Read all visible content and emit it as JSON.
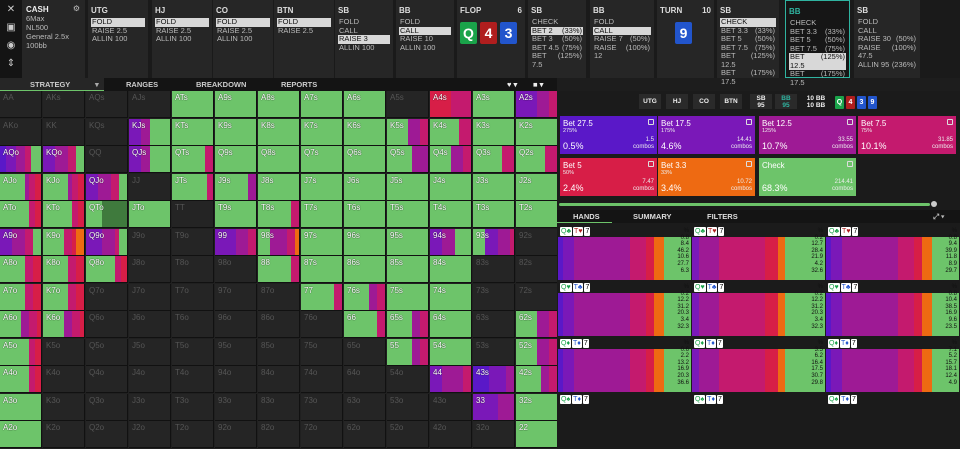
{
  "toolbar": {
    "icons": [
      "close-icon",
      "save-icon",
      "gamepad-icon",
      "split-icon"
    ]
  },
  "game": {
    "title": "CASH",
    "lines": [
      "6Max",
      "NL500",
      "General 2.5x",
      "100bb"
    ]
  },
  "positions": [
    {
      "key": "utg",
      "name": "UTG",
      "actions": [
        "FOLD",
        "RAISE 2.5",
        "ALLIN 100"
      ],
      "sel": 0,
      "x": 88,
      "w": 60
    },
    {
      "key": "hj",
      "name": "HJ",
      "actions": [
        "FOLD",
        "RAISE 2.5",
        "ALLIN 100"
      ],
      "sel": 0,
      "x": 152,
      "w": 60
    },
    {
      "key": "co",
      "name": "CO",
      "actions": [
        "FOLD",
        "RAISE 2.5",
        "ALLIN 100"
      ],
      "sel": 0,
      "x": 213,
      "w": 60
    },
    {
      "key": "btn",
      "name": "BTN",
      "actions": [
        "FOLD",
        "RAISE 2.5"
      ],
      "sel": 0,
      "x": 274,
      "w": 60
    },
    {
      "key": "sb",
      "name": "SB",
      "actions": [
        "FOLD",
        "CALL",
        "RAISE 3",
        "ALLIN 100"
      ],
      "sel": 2,
      "x": 335,
      "w": 58
    },
    {
      "key": "bb",
      "name": "BB",
      "actions": [
        "FOLD",
        "CALL",
        "RAISE 10",
        "ALLIN 100"
      ],
      "sel": 1,
      "x": 396,
      "w": 58
    }
  ],
  "flop": {
    "label": "FLOP",
    "pot": "6",
    "cards": [
      {
        "r": "Q",
        "c": "#1aa34a"
      },
      {
        "r": "4",
        "c": "#b01e1e"
      },
      {
        "r": "3",
        "c": "#2255cc"
      }
    ]
  },
  "flop_actions": [
    {
      "key": "sb",
      "name": "SB",
      "actions": [
        [
          "CHECK",
          ""
        ],
        [
          "BET 2",
          "(33%)"
        ],
        [
          "BET 3",
          "(50%)"
        ],
        [
          "BET 4.5",
          "(75%)"
        ],
        [
          "BET 7.5",
          "(125%)"
        ]
      ],
      "sel": 1,
      "x": 528,
      "w": 58
    },
    {
      "key": "bb",
      "name": "BB",
      "actions": [
        [
          "FOLD",
          ""
        ],
        [
          "CALL",
          ""
        ],
        [
          "RAISE 7",
          "(50%)"
        ],
        [
          "RAISE 12",
          "(100%)"
        ]
      ],
      "sel": 1,
      "x": 590,
      "w": 64
    }
  ],
  "turn": {
    "label": "TURN",
    "pot": "10",
    "cards": [
      {
        "r": "9",
        "c": "#2255cc"
      }
    ]
  },
  "turn_actions": [
    {
      "key": "sb",
      "name": "SB",
      "actions": [
        [
          "CHECK",
          ""
        ],
        [
          "BET 3.3",
          "(33%)"
        ],
        [
          "BET 5",
          "(50%)"
        ],
        [
          "BET 7.5",
          "(75%)"
        ],
        [
          "BET 12.5",
          "(125%)"
        ],
        [
          "BET 17.5",
          "(175%)"
        ]
      ],
      "sel": 0,
      "x": 717,
      "w": 62
    },
    {
      "key": "bb",
      "name": "BB",
      "actions": [
        [
          "CHECK",
          ""
        ],
        [
          "BET 3.3",
          "(33%)"
        ],
        [
          "BET 5",
          "(50%)"
        ],
        [
          "BET 7.5",
          "(75%)"
        ],
        [
          "BET 12.5",
          "(125%)"
        ],
        [
          "BET 17.5",
          "(175%)"
        ]
      ],
      "sel": -1,
      "x": 785,
      "w": 65
    },
    {
      "key": "sb2",
      "name": "SB",
      "actions": [
        [
          "FOLD",
          ""
        ],
        [
          "CALL",
          ""
        ],
        [
          "RAISE 30",
          "(50%)"
        ],
        [
          "RAISE 47.5",
          "(100%)"
        ],
        [
          "ALLIN 95",
          "(236%)"
        ]
      ],
      "sel": -1,
      "x": 854,
      "w": 66
    }
  ],
  "tabs": [
    "STRATEGY",
    "RANGES",
    "BREAKDOWN",
    "REPORTS"
  ],
  "grid": [
    [
      "AA",
      "AKs",
      "AQs",
      "AJs",
      "ATs",
      "A9s",
      "A8s",
      "A7s",
      "A6s",
      "A5s",
      "A4s",
      "A3s",
      "A2s"
    ],
    [
      "AKo",
      "KK",
      "KQs",
      "KJs",
      "KTs",
      "K9s",
      "K8s",
      "K7s",
      "K6s",
      "K5s",
      "K4s",
      "K3s",
      "K2s"
    ],
    [
      "AQo",
      "KQo",
      "QQ",
      "QJs",
      "QTs",
      "Q9s",
      "Q8s",
      "Q7s",
      "Q6s",
      "Q5s",
      "Q4s",
      "Q3s",
      "Q2s"
    ],
    [
      "AJo",
      "KJo",
      "QJo",
      "JJ",
      "JTs",
      "J9s",
      "J8s",
      "J7s",
      "J6s",
      "J5s",
      "J4s",
      "J3s",
      "J2s"
    ],
    [
      "ATo",
      "KTo",
      "QTo",
      "JTo",
      "TT",
      "T9s",
      "T8s",
      "T7s",
      "T6s",
      "T5s",
      "T4s",
      "T3s",
      "T2s"
    ],
    [
      "A9o",
      "K9o",
      "Q9o",
      "J9o",
      "T9o",
      "99",
      "98s",
      "97s",
      "96s",
      "95s",
      "94s",
      "93s",
      "92s"
    ],
    [
      "A8o",
      "K8o",
      "Q8o",
      "J8o",
      "T8o",
      "98o",
      "88",
      "87s",
      "86s",
      "85s",
      "84s",
      "83s",
      "82s"
    ],
    [
      "A7o",
      "K7o",
      "Q7o",
      "J7o",
      "T7o",
      "97o",
      "87o",
      "77",
      "76s",
      "75s",
      "74s",
      "73s",
      "72s"
    ],
    [
      "A6o",
      "K6o",
      "Q6o",
      "J6o",
      "T6o",
      "96o",
      "86o",
      "76o",
      "66",
      "65s",
      "64s",
      "63s",
      "62s"
    ],
    [
      "A5o",
      "K5o",
      "Q5o",
      "J5o",
      "T5o",
      "95o",
      "85o",
      "75o",
      "65o",
      "55",
      "54s",
      "53s",
      "52s"
    ],
    [
      "A4o",
      "K4o",
      "Q4o",
      "J4o",
      "T4o",
      "94o",
      "84o",
      "74o",
      "64o",
      "54o",
      "44",
      "43s",
      "42s"
    ],
    [
      "A3o",
      "K3o",
      "Q3o",
      "J3o",
      "T3o",
      "93o",
      "83o",
      "73o",
      "63o",
      "53o",
      "43o",
      "33",
      "32s"
    ],
    [
      "A2o",
      "K2o",
      "Q2o",
      "J2o",
      "T2o",
      "92o",
      "82o",
      "72o",
      "62o",
      "52o",
      "42o",
      "32o",
      "22"
    ]
  ],
  "players": [
    "UTG",
    "HJ",
    "CO",
    "BTN"
  ],
  "sb_stack": {
    "name": "SB",
    "stack": "95"
  },
  "bb_stack": {
    "name": "BB",
    "stack": "95"
  },
  "pot_label": "10 BB",
  "pot_sub": "10 BB",
  "board": [
    {
      "r": "Q",
      "c": "#1aa34a"
    },
    {
      "r": "4",
      "c": "#b01e1e"
    },
    {
      "r": "3",
      "c": "#2255cc"
    },
    {
      "r": "9",
      "c": "#2255cc"
    }
  ],
  "strategy_boxes": [
    {
      "key": "bet-27-5",
      "label": "Bet 27.5",
      "size": "275%",
      "pct": "0.5%",
      "combos": "1.5",
      "unit": "combos",
      "color": "#5a18c8"
    },
    {
      "key": "bet-17-5",
      "label": "Bet 17.5",
      "size": "175%",
      "pct": "4.6%",
      "combos": "14.41",
      "unit": "combos",
      "color": "#7a18b8"
    },
    {
      "key": "bet-12-5",
      "label": "Bet 12.5",
      "size": "125%",
      "pct": "10.7%",
      "combos": "33.55",
      "unit": "combos",
      "color": "#9e1a95"
    },
    {
      "key": "bet-7-5",
      "label": "Bet 7.5",
      "size": "75%",
      "pct": "10.1%",
      "combos": "31.85",
      "unit": "combos",
      "color": "#c41a6e"
    },
    {
      "key": "bet-5",
      "label": "Bet 5",
      "size": "50%",
      "pct": "2.4%",
      "combos": "7.47",
      "unit": "combos",
      "color": "#d71e47"
    },
    {
      "key": "bet-3-3",
      "label": "Bet 3.3",
      "size": "33%",
      "pct": "3.4%",
      "combos": "10.72",
      "unit": "combos",
      "color": "#ee6a12"
    },
    {
      "key": "check",
      "label": "Check",
      "size": "",
      "pct": "68.3%",
      "combos": "214.41",
      "unit": "combos",
      "color": "#6dc46a"
    }
  ],
  "hand_tabs": [
    "HANDS",
    "SUMMARY",
    "FILTERS"
  ],
  "hands": [
    {
      "cards": [
        "Q♣",
        "T♥",
        "7"
      ],
      "nums": [
        "%",
        "0.8",
        "8.4",
        "46.2",
        "10.6",
        "27.7",
        "6.3"
      ],
      "nums2": [
        "%",
        "0.2",
        "12.7",
        "28.4",
        "21.9",
        "4.2",
        "32.6"
      ],
      "nums3": [
        "%",
        "0.8",
        "9.4",
        "39.9",
        "11.8",
        "8.9",
        "29.7"
      ]
    },
    {
      "cards": [
        "Q♥",
        "T♣",
        "7"
      ],
      "nums": [
        "%",
        "0.2",
        "12.2",
        "31.2",
        "20.3",
        "3.4",
        "32.3"
      ],
      "nums2": [
        "%",
        "0.2",
        "12.2",
        "31.2",
        "20.3",
        "3.4",
        "32.3"
      ],
      "nums3": [
        "%",
        "0.8",
        "10.4",
        "38.5",
        "16.9",
        "9.6",
        "23.5"
      ]
    },
    {
      "cards": [
        "Q♦",
        "T♦",
        "7"
      ],
      "nums": [
        "%",
        "0.6",
        "2.2",
        "13.2",
        "16.9",
        "20.3",
        "36.6"
      ],
      "nums2": [
        "%",
        "3.5",
        "6.2",
        "16.4",
        "17.5",
        "30.7",
        "29.8"
      ],
      "nums3": [
        "%",
        "7.1",
        "5.2",
        "15.7",
        "18.1",
        "12.4",
        "4.9"
      ]
    },
    {
      "cards": [
        "Q♠",
        "T♦",
        "7"
      ],
      "nums": [],
      "nums2": [],
      "nums3": []
    }
  ]
}
